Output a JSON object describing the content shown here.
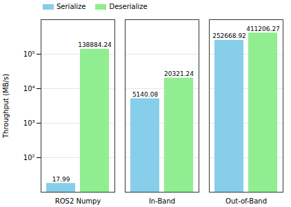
{
  "chart_data": {
    "type": "bar",
    "categories": [
      "ROS2 Numpy",
      "In-Band",
      "Out-of-Band"
    ],
    "series": [
      {
        "name": "Serialize",
        "color": "#87ceeb",
        "values": [
          17.99,
          5140.08,
          252668.92
        ]
      },
      {
        "name": "Deserialize",
        "color": "#90ee90",
        "values": [
          138884.24,
          20321.24,
          411206.27
        ]
      }
    ],
    "y_label": "Throughput (MB/s)",
    "log": "y",
    "ylim": [
      10,
      1000000
    ],
    "yticks": [
      {
        "value": 100,
        "label": "10²"
      },
      {
        "value": 1000,
        "label": "10³"
      },
      {
        "value": 10000,
        "label": "10⁴"
      },
      {
        "value": 100000,
        "label": "10⁵"
      }
    ],
    "grid": true,
    "legend": "upper left",
    "data_labels": true
  }
}
